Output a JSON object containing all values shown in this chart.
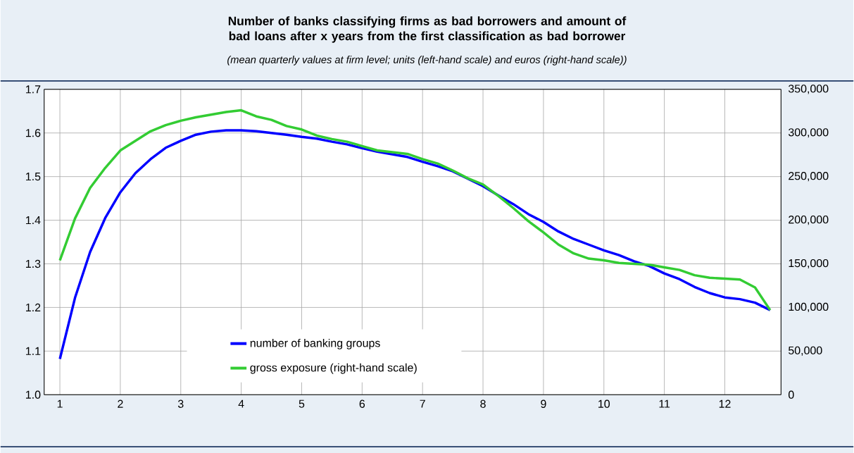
{
  "chart_data": {
    "type": "line",
    "title": "Number of banks classifying firms as bad borrowers and amount of bad loans after x years from the first classification as bad borrower",
    "subtitle": "(mean quarterly values at firm level; units (left-hand scale) and euros (right-hand scale))",
    "x": [
      1,
      1.25,
      1.5,
      1.75,
      2,
      2.25,
      2.5,
      2.75,
      3,
      3.25,
      3.5,
      3.75,
      4,
      4.25,
      4.5,
      4.75,
      5,
      5.25,
      5.5,
      5.75,
      6,
      6.25,
      6.5,
      6.75,
      7,
      7.25,
      7.5,
      7.75,
      8,
      8.25,
      8.5,
      8.75,
      9,
      9.25,
      9.5,
      9.75,
      10,
      10.25,
      10.5,
      10.75,
      11,
      11.25,
      11.5,
      11.75,
      12,
      12.25,
      12.5,
      12.75
    ],
    "series": [
      {
        "name": "number of banking groups",
        "color": "#0000ff",
        "values": [
          1.082,
          1.222,
          1.327,
          1.405,
          1.464,
          1.508,
          1.54,
          1.566,
          1.582,
          1.596,
          1.603,
          1.606,
          1.606,
          1.604,
          1.6,
          1.596,
          1.591,
          1.587,
          1.58,
          1.574,
          1.565,
          1.557,
          1.551,
          1.545,
          1.534,
          1.524,
          1.512,
          1.495,
          1.478,
          1.457,
          1.437,
          1.414,
          1.396,
          1.374,
          1.357,
          1.344,
          1.331,
          1.32,
          1.306,
          1.295,
          1.278,
          1.265,
          1.247,
          1.233,
          1.223,
          1.219,
          1.211,
          1.194
        ]
      },
      {
        "name": "gross exposure (right-hand scale)",
        "color": "#33cc33",
        "axis": "y2",
        "values": [
          154000,
          202000,
          237000,
          260000,
          280000,
          291000,
          302000,
          309000,
          314000,
          318000,
          321000,
          324000,
          326000,
          319000,
          315000,
          308000,
          304000,
          297000,
          293000,
          290000,
          285000,
          280000,
          278000,
          276000,
          270000,
          265000,
          257000,
          248000,
          241000,
          228000,
          214000,
          199000,
          186000,
          172000,
          162000,
          156000,
          154000,
          151000,
          150000,
          149000,
          146000,
          143000,
          137000,
          134000,
          133000,
          132000,
          123000,
          97000
        ]
      }
    ],
    "xlim": [
      0.74,
      12.93
    ],
    "xticks": [
      1,
      2,
      3,
      4,
      5,
      6,
      7,
      8,
      9,
      10,
      11,
      12
    ],
    "ylim": [
      1.0,
      1.7
    ],
    "yticks": [
      {
        "value": 1.0,
        "label": "1.0"
      },
      1.1,
      1.2,
      1.3,
      1.4,
      1.5,
      1.6,
      1.7
    ],
    "y2lim": [
      0,
      350000
    ],
    "y2ticks": [
      0,
      {
        "value": 50000,
        "label": "50,000"
      },
      {
        "value": 100000,
        "label": "100,000"
      },
      {
        "value": 150000,
        "label": "150,000"
      },
      {
        "value": 200000,
        "label": "200,000"
      },
      {
        "value": 250000,
        "label": "250,000"
      },
      {
        "value": 300000,
        "label": "300,000"
      },
      {
        "value": 350000,
        "label": "350,000"
      }
    ],
    "grid": true,
    "legend": "bottom",
    "line_style": "solid"
  }
}
